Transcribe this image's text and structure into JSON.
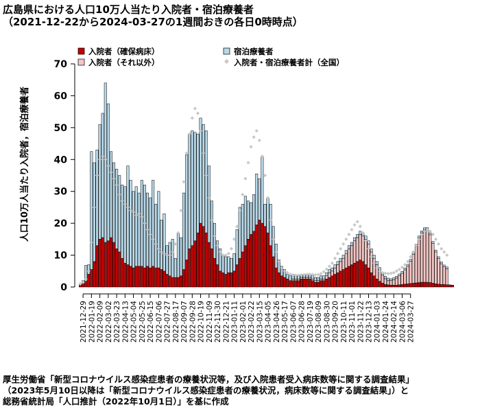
{
  "title_line1": "広島県における人口10万人当たり入院者・宿泊療養者",
  "title_line2": "（2021-12-22から2024-03-27の1週間おきの各日0時時点）",
  "source_line1": "厚生労働省「新型コロナウイルス感染症患者の療養状況等，及び入院患者受入病床数等に関する調査結果」",
  "source_line2": "（2023年5月10日以降は「新型コロナウイルス感染症患者の療養状況，病床数等に関する調査結果」）と",
  "source_line3": "総務省統計局「人口推計（2022年10月1日）」を基に作成",
  "colors": {
    "severe": "#c00000",
    "other": "#f4c6c6",
    "hotel": "#b8d8e8",
    "national": "#c8c8c8"
  },
  "chart_data": {
    "type": "bar",
    "stacked": true,
    "ylabel": "人口10万人当たり入院者，宿泊療養者",
    "ylim": [
      0,
      70
    ],
    "yticks": [
      0,
      10,
      20,
      30,
      40,
      50,
      60,
      70
    ],
    "x_tick_labels": [
      "2021-12-29",
      "2022-01-19",
      "2022-02-09",
      "2022-03-02",
      "2022-03-23",
      "2022-04-13",
      "2022-05-04",
      "2022-05-25",
      "2022-06-15",
      "2022-07-06",
      "2022-07-27",
      "2022-08-17",
      "2022-09-07",
      "2022-09-28",
      "2022-10-19",
      "2022-11-09",
      "2022-11-30",
      "2022-12-21",
      "2023-01-11",
      "2023-02-01",
      "2023-02-22",
      "2023-03-15",
      "2023-04-05",
      "2023-04-26",
      "2023-05-17",
      "2023-06-07",
      "2023-06-28",
      "2023-07-19",
      "2023-08-09",
      "2023-08-30",
      "2023-09-20",
      "2023-10-11",
      "2023-11-01",
      "2023-11-22",
      "2023-12-13",
      "2024-01-03",
      "2024-01-24",
      "2024-02-14",
      "2024-03-06",
      "2024-03-27"
    ],
    "legend": {
      "severe": "入院者（確保病床）",
      "other": "入院者（それ以外）",
      "hotel": "宿泊療養者",
      "national": "入院者・宿泊療養者計（全国）"
    },
    "severe": [
      0.5,
      1.0,
      1.8,
      4.0,
      5.5,
      8.0,
      13.0,
      15.0,
      15.5,
      14.0,
      14.5,
      15.5,
      14.0,
      12.0,
      11.0,
      9.0,
      7.5,
      7.0,
      6.5,
      6.0,
      6.5,
      6.5,
      6.5,
      6.0,
      6.5,
      6.0,
      6.5,
      6.0,
      6.0,
      5.5,
      5.0,
      4.0,
      3.5,
      3.0,
      3.0,
      3.0,
      3.5,
      5.5,
      8.5,
      12.0,
      13.0,
      14.5,
      17.0,
      20.0,
      19.0,
      17.0,
      14.0,
      12.0,
      9.0,
      7.0,
      5.0,
      4.5,
      4.0,
      4.5,
      4.5,
      5.0,
      7.0,
      9.0,
      11.0,
      13.0,
      15.0,
      16.5,
      17.5,
      19.5,
      21.0,
      20.0,
      19.0,
      17.0,
      13.0,
      9.5,
      6.0,
      4.5,
      3.5,
      3.0,
      2.5,
      2.0,
      2.0,
      2.0,
      2.0,
      2.5,
      2.5,
      2.5,
      2.5,
      2.0,
      1.5,
      1.5,
      2.0,
      2.0,
      2.5,
      3.0,
      3.5,
      4.0,
      4.5,
      5.0,
      5.5,
      6.0,
      6.5,
      7.0,
      7.5,
      8.0,
      8.5,
      8.0,
      7.0,
      6.0,
      4.5,
      3.5,
      2.5,
      1.8,
      1.2,
      0.8,
      0.7,
      0.6,
      0.6,
      0.6,
      0.7,
      0.8,
      0.9,
      1.0,
      1.1,
      1.2,
      1.3,
      1.4,
      1.5,
      1.5,
      1.5,
      1.4,
      1.2,
      1.0,
      0.9,
      0.8,
      0.8,
      0.7,
      0.7,
      0.6
    ],
    "other": [
      0,
      0,
      0,
      0,
      0,
      0,
      0,
      0,
      0,
      0,
      0,
      0,
      0,
      0,
      0,
      0,
      0,
      0,
      0,
      0,
      0,
      0,
      0,
      0,
      0,
      0,
      0,
      0,
      0,
      0,
      0,
      0,
      0,
      0,
      0,
      0,
      0,
      0,
      0,
      0,
      0,
      0,
      0,
      0,
      0,
      0,
      0,
      0,
      0,
      0,
      0,
      0,
      0,
      0,
      0,
      0,
      0,
      0,
      0,
      0,
      0,
      0,
      0,
      0,
      0,
      0,
      0,
      0,
      0,
      0,
      0,
      0,
      0,
      0,
      0,
      0,
      0.5,
      0.5,
      0.5,
      0.5,
      0.5,
      0.5,
      0.5,
      0.5,
      0.5,
      0.5,
      0.5,
      0.5,
      1.0,
      1.5,
      1.5,
      2.0,
      2.5,
      3.0,
      3.5,
      4.5,
      5.5,
      6.0,
      7.0,
      7.5,
      8.0,
      8.0,
      8.0,
      7.5,
      6.5,
      5.5,
      4.5,
      3.5,
      2.5,
      1.8,
      1.3,
      1.4,
      1.7,
      2.2,
      2.8,
      3.5,
      4.5,
      5.5,
      7.0,
      9.0,
      11.5,
      14.0,
      15.5,
      16.5,
      16.5,
      15.0,
      12.5,
      10.0,
      8.0,
      6.5,
      5.5,
      5.0
    ],
    "hotel": [
      0.5,
      1.0,
      5.0,
      3.0,
      37.0,
      31.0,
      30.0,
      36.0,
      39.0,
      50.0,
      43.0,
      27.0,
      25.0,
      25.0,
      24.0,
      23.0,
      24.0,
      31.0,
      27.0,
      24.0,
      25.0,
      23.0,
      27.0,
      26.0,
      23.0,
      22.0,
      27.0,
      20.0,
      24.0,
      15.5,
      18.0,
      9.0,
      10.5,
      12.0,
      6.0,
      14.0,
      12.0,
      24.0,
      33.0,
      36.0,
      36.0,
      34.0,
      31.0,
      33.0,
      32.0,
      32.0,
      24.0,
      15.0,
      11.0,
      7.5,
      7.0,
      5.5,
      5.5,
      5.0,
      4.5,
      5.5,
      11.0,
      16.0,
      15.0,
      15.5,
      12.0,
      10.0,
      11.5,
      16.0,
      13.0,
      21.0,
      7.0,
      11.0,
      13.0,
      9.5,
      7.5,
      4.0,
      3.0,
      2.5,
      1.5,
      1.5,
      1.5,
      1.0,
      1.0,
      1.0,
      1.0,
      1.0,
      1.0,
      1.0,
      1.0,
      1.0,
      1.0,
      1.0,
      1.0,
      1.0,
      1.0,
      1.0,
      1.0,
      1.0,
      1.0,
      1.0,
      1.0,
      1.0,
      1.0,
      1.0,
      1.0,
      1.0,
      1.0,
      1.0,
      1.0,
      1.0,
      1.0,
      0.8,
      0.8,
      0.8,
      0.8,
      0.6,
      0.6,
      0.6,
      0.6,
      0.6,
      0.6,
      0.6,
      0.6,
      0.6,
      0.6,
      0.6,
      0.6,
      0.6,
      0.6,
      0.6,
      0.6,
      0.6,
      0.6,
      0.6,
      0.6,
      0.6
    ],
    "national": [
      1.0,
      1.5,
      2.5,
      5.0,
      14.0,
      25.0,
      35.0,
      40.0,
      41.0,
      40.0,
      38.0,
      36.0,
      34.0,
      32.0,
      29.0,
      27.0,
      26.0,
      25.0,
      24.0,
      23.5,
      22.5,
      23.0,
      22.0,
      20.0,
      18.0,
      16.5,
      15.0,
      13.5,
      12.0,
      11.0,
      10.5,
      10.0,
      10.0,
      11.0,
      13.5,
      17.0,
      24.0,
      33.0,
      42.0,
      48.0,
      53.0,
      56.0,
      54.5,
      49.0,
      42.0,
      35.0,
      28.0,
      21.0,
      16.0,
      13.0,
      11.0,
      10.0,
      10.0,
      10.5,
      12.0,
      15.0,
      19.0,
      24.0,
      29.0,
      34.0,
      39.0,
      44.0,
      47.0,
      49.0,
      46.0,
      41.0,
      35.0,
      28.0,
      21.0,
      15.0,
      11.0,
      8.0,
      6.0,
      5.0,
      4.5,
      4.0,
      3.8,
      3.7,
      3.7,
      3.8,
      3.9,
      4.0,
      4.0,
      3.9,
      3.8,
      3.9,
      4.2,
      4.8,
      5.6,
      6.5,
      7.5,
      9.0,
      10.5,
      12.0,
      13.5,
      15.0,
      16.5,
      18.0,
      19.5,
      20.5,
      19.0,
      17.0,
      14.5,
      12.0,
      9.5,
      7.5,
      6.0,
      5.0,
      4.5,
      4.3,
      4.2,
      4.3,
      4.5,
      5.0,
      5.5,
      6.2,
      7.0,
      8.0,
      9.5,
      11.0,
      13.0,
      15.0,
      16.5,
      17.5,
      18.0,
      17.5,
      16.5,
      15.0,
      13.5,
      12.0,
      11.0,
      10.0
    ]
  }
}
